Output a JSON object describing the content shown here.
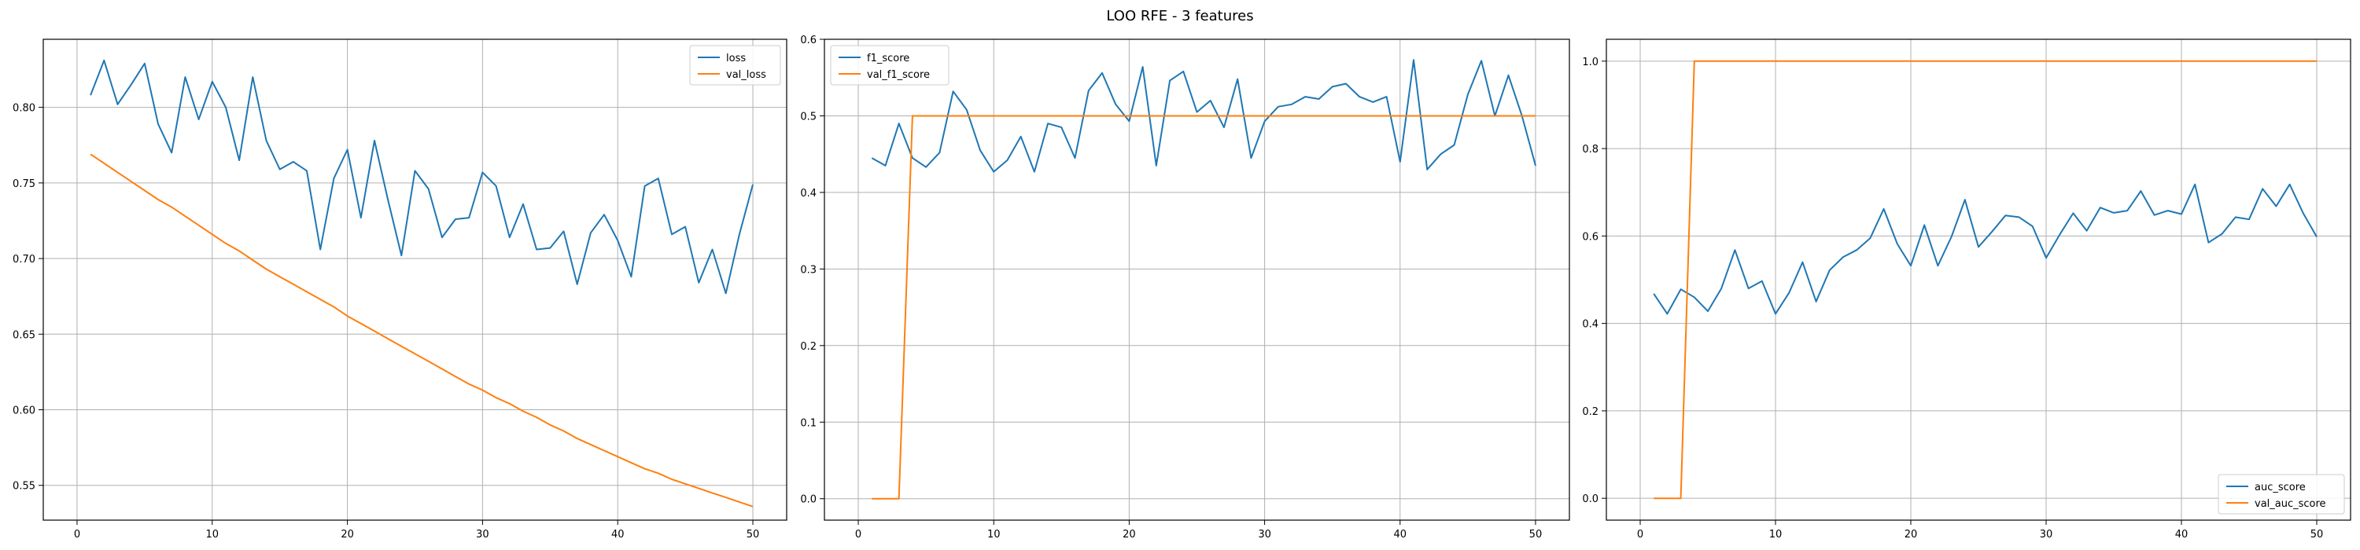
{
  "suptitle": "LOO RFE - 3 features",
  "colors": {
    "series1": "#1f77b4",
    "series2": "#ff7f0e",
    "grid": "#b0b0b0"
  },
  "chart_data": [
    {
      "type": "line",
      "title": "",
      "xlabel": "",
      "ylabel": "",
      "xlim": [
        -2.5,
        52.5
      ],
      "ylim": [
        0.527,
        0.845
      ],
      "xticks": [
        0,
        10,
        20,
        30,
        40,
        50
      ],
      "xtick_labels": [
        "0",
        "10",
        "20",
        "30",
        "40",
        "50"
      ],
      "yticks": [
        0.55,
        0.6,
        0.65,
        0.7,
        0.75,
        0.8
      ],
      "ytick_labels": [
        "0.55",
        "0.60",
        "0.65",
        "0.70",
        "0.75",
        "0.80"
      ],
      "grid": true,
      "legend": "top-right",
      "x": [
        1,
        2,
        3,
        4,
        5,
        6,
        7,
        8,
        9,
        10,
        11,
        12,
        13,
        14,
        15,
        16,
        17,
        18,
        19,
        20,
        21,
        22,
        23,
        24,
        25,
        26,
        27,
        28,
        29,
        30,
        31,
        32,
        33,
        34,
        35,
        36,
        37,
        38,
        39,
        40,
        41,
        42,
        43,
        44,
        45,
        46,
        47,
        48,
        49,
        50
      ],
      "series": [
        {
          "name": "loss",
          "values": [
            0.808,
            0.831,
            0.802,
            0.815,
            0.829,
            0.789,
            0.77,
            0.82,
            0.792,
            0.817,
            0.8,
            0.765,
            0.82,
            0.778,
            0.759,
            0.764,
            0.758,
            0.706,
            0.753,
            0.772,
            0.727,
            0.778,
            0.739,
            0.702,
            0.758,
            0.746,
            0.714,
            0.726,
            0.727,
            0.757,
            0.748,
            0.714,
            0.736,
            0.706,
            0.707,
            0.718,
            0.683,
            0.717,
            0.729,
            0.712,
            0.688,
            0.748,
            0.753,
            0.716,
            0.721,
            0.684,
            0.706,
            0.677,
            0.716,
            0.749
          ]
        },
        {
          "name": "val_loss",
          "values": [
            0.769,
            0.763,
            0.757,
            0.751,
            0.745,
            0.739,
            0.734,
            0.728,
            0.722,
            0.716,
            0.71,
            0.705,
            0.699,
            0.693,
            0.688,
            0.683,
            0.678,
            0.673,
            0.668,
            0.662,
            0.657,
            0.652,
            0.647,
            0.642,
            0.637,
            0.632,
            0.627,
            0.622,
            0.617,
            0.613,
            0.608,
            0.604,
            0.599,
            0.595,
            0.59,
            0.586,
            0.581,
            0.577,
            0.573,
            0.569,
            0.565,
            0.561,
            0.558,
            0.554,
            0.551,
            0.548,
            0.545,
            0.542,
            0.539,
            0.536
          ]
        }
      ]
    },
    {
      "type": "line",
      "title": "",
      "xlabel": "",
      "ylabel": "",
      "xlim": [
        -2.5,
        52.5
      ],
      "ylim": [
        -0.028,
        0.6
      ],
      "xticks": [
        0,
        10,
        20,
        30,
        40,
        50
      ],
      "xtick_labels": [
        "0",
        "10",
        "20",
        "30",
        "40",
        "50"
      ],
      "yticks": [
        0.0,
        0.1,
        0.2,
        0.3,
        0.4,
        0.5,
        0.6
      ],
      "ytick_labels": [
        "0.0",
        "0.1",
        "0.2",
        "0.3",
        "0.4",
        "0.5",
        "0.6"
      ],
      "grid": true,
      "legend": "top-left",
      "x": [
        1,
        2,
        3,
        4,
        5,
        6,
        7,
        8,
        9,
        10,
        11,
        12,
        13,
        14,
        15,
        16,
        17,
        18,
        19,
        20,
        21,
        22,
        23,
        24,
        25,
        26,
        27,
        28,
        29,
        30,
        31,
        32,
        33,
        34,
        35,
        36,
        37,
        38,
        39,
        40,
        41,
        42,
        43,
        44,
        45,
        46,
        47,
        48,
        49,
        50
      ],
      "series": [
        {
          "name": "f1_score",
          "values": [
            0.445,
            0.435,
            0.49,
            0.445,
            0.433,
            0.452,
            0.532,
            0.508,
            0.455,
            0.427,
            0.442,
            0.473,
            0.427,
            0.49,
            0.485,
            0.445,
            0.533,
            0.556,
            0.515,
            0.493,
            0.564,
            0.435,
            0.546,
            0.558,
            0.505,
            0.52,
            0.485,
            0.548,
            0.445,
            0.493,
            0.512,
            0.515,
            0.525,
            0.522,
            0.538,
            0.542,
            0.525,
            0.518,
            0.525,
            0.44,
            0.573,
            0.43,
            0.45,
            0.462,
            0.528,
            0.572,
            0.5,
            0.553,
            0.5,
            0.435
          ]
        },
        {
          "name": "val_f1_score",
          "values": [
            0,
            0,
            0,
            0.5,
            0.5,
            0.5,
            0.5,
            0.5,
            0.5,
            0.5,
            0.5,
            0.5,
            0.5,
            0.5,
            0.5,
            0.5,
            0.5,
            0.5,
            0.5,
            0.5,
            0.5,
            0.5,
            0.5,
            0.5,
            0.5,
            0.5,
            0.5,
            0.5,
            0.5,
            0.5,
            0.5,
            0.5,
            0.5,
            0.5,
            0.5,
            0.5,
            0.5,
            0.5,
            0.5,
            0.5,
            0.5,
            0.5,
            0.5,
            0.5,
            0.5,
            0.5,
            0.5,
            0.5,
            0.5,
            0.5
          ]
        }
      ]
    },
    {
      "type": "line",
      "title": "",
      "xlabel": "",
      "ylabel": "",
      "xlim": [
        -2.5,
        52.5
      ],
      "ylim": [
        -0.05,
        1.05
      ],
      "xticks": [
        0,
        10,
        20,
        30,
        40,
        50
      ],
      "xtick_labels": [
        "0",
        "10",
        "20",
        "30",
        "40",
        "50"
      ],
      "yticks": [
        0.0,
        0.2,
        0.4,
        0.6,
        0.8,
        1.0
      ],
      "ytick_labels": [
        "0.0",
        "0.2",
        "0.4",
        "0.6",
        "0.8",
        "1.0"
      ],
      "grid": true,
      "legend": "bottom-right",
      "x": [
        1,
        2,
        3,
        4,
        5,
        6,
        7,
        8,
        9,
        10,
        11,
        12,
        13,
        14,
        15,
        16,
        17,
        18,
        19,
        20,
        21,
        22,
        23,
        24,
        25,
        26,
        27,
        28,
        29,
        30,
        31,
        32,
        33,
        34,
        35,
        36,
        37,
        38,
        39,
        40,
        41,
        42,
        43,
        44,
        45,
        46,
        47,
        48,
        49,
        50
      ],
      "series": [
        {
          "name": "auc_score",
          "values": [
            0.468,
            0.422,
            0.478,
            0.46,
            0.428,
            0.48,
            0.568,
            0.48,
            0.497,
            0.422,
            0.47,
            0.54,
            0.45,
            0.522,
            0.552,
            0.568,
            0.595,
            0.662,
            0.582,
            0.532,
            0.625,
            0.532,
            0.598,
            0.683,
            0.575,
            0.61,
            0.647,
            0.643,
            0.622,
            0.55,
            0.603,
            0.652,
            0.612,
            0.665,
            0.653,
            0.658,
            0.703,
            0.648,
            0.658,
            0.65,
            0.718,
            0.585,
            0.605,
            0.643,
            0.638,
            0.708,
            0.668,
            0.718,
            0.652,
            0.598
          ]
        },
        {
          "name": "val_auc_score",
          "values": [
            0,
            0,
            0,
            1,
            1,
            1,
            1,
            1,
            1,
            1,
            1,
            1,
            1,
            1,
            1,
            1,
            1,
            1,
            1,
            1,
            1,
            1,
            1,
            1,
            1,
            1,
            1,
            1,
            1,
            1,
            1,
            1,
            1,
            1,
            1,
            1,
            1,
            1,
            1,
            1,
            1,
            1,
            1,
            1,
            1,
            1,
            1,
            1,
            1,
            1
          ]
        }
      ]
    }
  ]
}
